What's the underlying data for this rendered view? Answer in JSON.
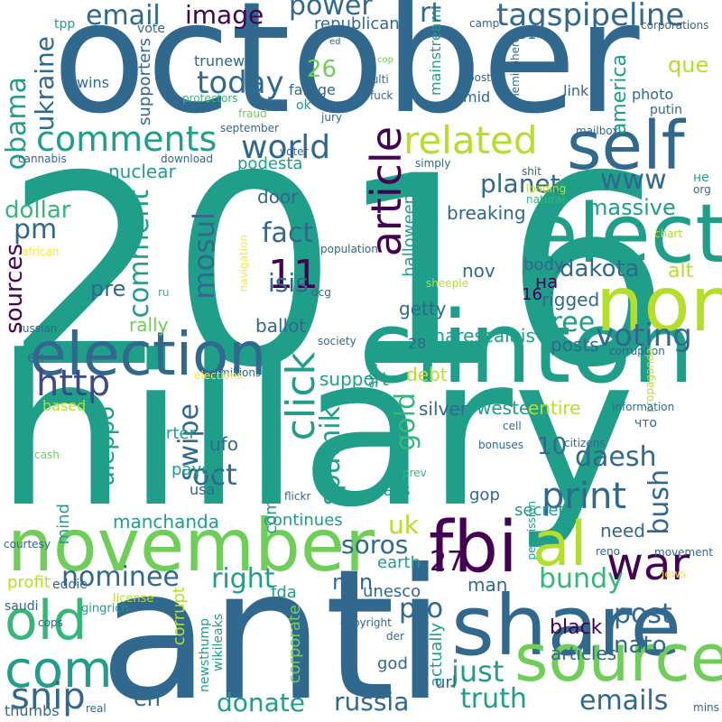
{
  "colors": {
    "background": "#ffffff",
    "palette": [
      "#440154",
      "#482878",
      "#3e4989",
      "#31688e",
      "#26828e",
      "#1f9e89",
      "#35b779",
      "#6ece58",
      "#b5de2b",
      "#fde725"
    ]
  },
  "words": [
    "october",
    "2016",
    "hillary",
    "anti",
    "november",
    "clinton",
    "election",
    "share",
    "source",
    "non",
    "elect",
    "self",
    "article",
    "fbi",
    "war",
    "al",
    "old",
    "com",
    "related",
    "world",
    "comments",
    "click",
    "http",
    "snip",
    "print",
    "www",
    "11",
    "obama",
    "ukraine",
    "email",
    "power",
    "tagspipeline",
    "rt",
    "image",
    "today",
    "26",
    "que",
    "america",
    "comment",
    "planet",
    "massive",
    "dakota",
    "alt",
    "mosul",
    "fact",
    "isis",
    "voting",
    "free",
    "pm",
    "dollar",
    "sources",
    "pre",
    "rally",
    "ballot",
    "podesta",
    "door",
    "nuclear",
    "sputnik",
    "aleppo",
    "oct",
    "swipe",
    "gold",
    "daesh",
    "bush",
    "10",
    "uk",
    "soros",
    "nominee",
    "right",
    "nan",
    "27",
    "bundy",
    "pro",
    "post",
    "nato",
    "just",
    "russia",
    "truth",
    "emails",
    "donate",
    "en",
    "manchanda",
    "continues",
    "secret",
    "need",
    "support",
    "debt",
    "silver",
    "western",
    "entire",
    "posts",
    "sharescalais",
    "breaking",
    "halloween",
    "nov",
    "rigged",
    "body",
    "getty",
    "на",
    "16",
    "28",
    "shall",
    "carter",
    "ufo",
    "payer",
    "usa",
    "completely",
    "class",
    "gop",
    "man",
    "earth",
    "unesco",
    "fda",
    "corporate",
    "actually",
    "god",
    "url",
    "black",
    "articles",
    "mind",
    "profit",
    "eddie",
    "license",
    "saudi",
    "cops",
    "gingrich",
    "corrupt",
    "newsthump",
    "wikileaks",
    "copyright",
    "der",
    "thumbs",
    "real",
    "mins",
    "courtesy",
    "cash",
    "based",
    "ex",
    "russian",
    "african",
    "cannabis",
    "download",
    "september",
    "jury",
    "fraud",
    "protectors",
    "wins",
    "supporters",
    "trunews",
    "farage",
    "vote",
    "republican",
    "mainstream",
    "mid",
    "multi",
    "fuck",
    "cop",
    "ed",
    "posted",
    "camp",
    "31",
    "corporations",
    "link",
    "photo",
    "putin",
    "hemisphere",
    "mailbox",
    "simply",
    "shit",
    "loading",
    "natural",
    "не",
    "org",
    "chart",
    "population",
    "navigation",
    "sheeple",
    "society",
    "corruption",
    "propaganda",
    "information",
    "что",
    "cell",
    "citizens",
    "prev",
    "bonuses",
    "permission",
    "reno",
    "movement",
    "jews",
    "voter",
    "dcg",
    "ru",
    "millions",
    "elections",
    "ok",
    "tpp",
    "flickr"
  ]
}
